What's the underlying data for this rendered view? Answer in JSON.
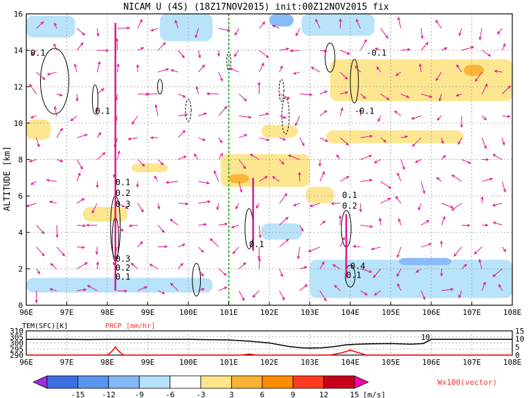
{
  "chart_data": [
    {
      "type": "heatmap",
      "title": "NICAM U (4S) (18Z17NOV2015) init:00Z12NOV2015 fix",
      "ylabel": "ALTITUDE [km]",
      "xlim": [
        96,
        108
      ],
      "ylim": [
        0,
        16
      ],
      "x_ticks": [
        "96E",
        "97E",
        "98E",
        "99E",
        "100E",
        "101E",
        "102E",
        "103E",
        "104E",
        "105E",
        "106E",
        "107E",
        "108E"
      ],
      "y_ticks": [
        "0",
        "2",
        "4",
        "6",
        "8",
        "10",
        "12",
        "14",
        "16"
      ],
      "grid": true,
      "marker_line_x": 101,
      "contour_labels": [
        {
          "text": "0.1",
          "x": 96.1,
          "y": 13.7
        },
        {
          "text": "0.1",
          "x": 97.7,
          "y": 10.5
        },
        {
          "text": "0.1",
          "x": 98.2,
          "y": 6.6
        },
        {
          "text": "0.2",
          "x": 98.2,
          "y": 6.0
        },
        {
          "text": "0.3",
          "x": 98.2,
          "y": 5.4
        },
        {
          "text": "0.3",
          "x": 98.2,
          "y": 2.4
        },
        {
          "text": "0.2",
          "x": 98.2,
          "y": 1.9
        },
        {
          "text": "0.1",
          "x": 98.2,
          "y": 1.4
        },
        {
          "text": "0.1",
          "x": 101.5,
          "y": 3.2
        },
        {
          "text": "0.1",
          "x": 103.8,
          "y": 5.9
        },
        {
          "text": "0.2",
          "x": 103.8,
          "y": 5.3
        },
        {
          "text": "0.4",
          "x": 104.0,
          "y": 2.0
        },
        {
          "text": "0.1",
          "x": 103.9,
          "y": 1.5
        },
        {
          "text": "-0.1",
          "x": 104.4,
          "y": 13.7
        },
        {
          "text": "-0.1",
          "x": 104.1,
          "y": 10.5
        }
      ],
      "shaded_regions": [
        {
          "level": "-3",
          "x": [
            96.0,
            97.2
          ],
          "y": [
            14.7,
            15.9
          ]
        },
        {
          "level": "-3",
          "x": [
            99.3,
            100.6
          ],
          "y": [
            14.5,
            16.0
          ]
        },
        {
          "level": "-3",
          "x": [
            102.8,
            104.6
          ],
          "y": [
            14.8,
            16.0
          ]
        },
        {
          "level": "-6",
          "x": [
            102.0,
            102.6
          ],
          "y": [
            15.3,
            16.0
          ]
        },
        {
          "level": "3",
          "x": [
            103.5,
            108.0
          ],
          "y": [
            11.2,
            13.5
          ]
        },
        {
          "level": "6",
          "x": [
            106.8,
            107.3
          ],
          "y": [
            12.6,
            13.2
          ]
        },
        {
          "level": "3",
          "x": [
            100.8,
            103.0
          ],
          "y": [
            6.5,
            8.3
          ]
        },
        {
          "level": "6",
          "x": [
            101.0,
            101.5
          ],
          "y": [
            6.7,
            7.2
          ]
        },
        {
          "level": "3",
          "x": [
            98.6,
            99.5
          ],
          "y": [
            7.3,
            7.8
          ]
        },
        {
          "level": "3",
          "x": [
            101.8,
            102.7
          ],
          "y": [
            9.2,
            9.9
          ]
        },
        {
          "level": "3",
          "x": [
            103.4,
            106.8
          ],
          "y": [
            8.9,
            9.6
          ]
        },
        {
          "level": "3",
          "x": [
            96.0,
            96.6
          ],
          "y": [
            9.1,
            10.2
          ]
        },
        {
          "level": "3",
          "x": [
            97.4,
            98.5
          ],
          "y": [
            4.6,
            5.4
          ]
        },
        {
          "level": "3",
          "x": [
            102.9,
            103.6
          ],
          "y": [
            5.6,
            6.5
          ]
        },
        {
          "level": "-3",
          "x": [
            103.0,
            108.0
          ],
          "y": [
            0.4,
            2.5
          ]
        },
        {
          "level": "-6",
          "x": [
            105.2,
            106.5
          ],
          "y": [
            2.2,
            2.6
          ]
        },
        {
          "level": "-3",
          "x": [
            96.0,
            100.6
          ],
          "y": [
            0.7,
            1.5
          ]
        },
        {
          "level": "-3",
          "x": [
            101.8,
            102.8
          ],
          "y": [
            3.6,
            4.5
          ]
        }
      ]
    },
    {
      "type": "line",
      "title": "",
      "xlim": [
        96,
        108
      ],
      "legend": [
        "TEM(SFC)[K]",
        "PRCP [mm/hr]"
      ],
      "left_ticks": [
        "310",
        "305",
        "300",
        "295",
        "290"
      ],
      "right_ticks": [
        "15",
        "10",
        "5",
        "0"
      ],
      "annotation": "10",
      "series": [
        {
          "name": "TEM(SFC)[K]",
          "color": "#000000",
          "x": [
            96.0,
            97.0,
            97.5,
            98.0,
            99.0,
            100.0,
            101.0,
            101.5,
            102.0,
            102.5,
            102.8,
            103.0,
            103.3,
            103.6,
            103.9,
            104.2,
            104.5,
            105.0,
            105.5,
            105.8,
            106.0,
            106.5,
            107.0,
            108.0
          ],
          "y": [
            303,
            303,
            302.8,
            303,
            303,
            303,
            302.5,
            301.5,
            300,
            297,
            296,
            295.8,
            296,
            297,
            298.5,
            299,
            299.3,
            299.5,
            299,
            299.5,
            303,
            303,
            303,
            303
          ]
        },
        {
          "name": "PRCP [mm/hr]",
          "color": "#ff0000",
          "x": [
            96.0,
            98.0,
            98.1,
            98.2,
            98.3,
            98.4,
            98.5,
            101.0,
            101.3,
            101.5,
            101.7,
            103.5,
            103.8,
            104.0,
            104.2,
            104.4,
            108.0
          ],
          "y": [
            0,
            0,
            2,
            5,
            2,
            0,
            0,
            0,
            0,
            0.6,
            0,
            0,
            1.5,
            3,
            1.5,
            0,
            0
          ]
        }
      ]
    }
  ],
  "colorbar": {
    "ticks": [
      "-15",
      "-12",
      "-9",
      "-6",
      "-3",
      "3",
      "6",
      "9",
      "12",
      "15"
    ],
    "unit": "[m/s]",
    "colors": [
      "#9b30e0",
      "#3c6fe0",
      "#5b95ef",
      "#85b8f7",
      "#b4e1f9",
      "#ffffff",
      "#fde58a",
      "#fbb235",
      "#ff8c00",
      "#ff3b1f",
      "#c8001c",
      "#ff00a8"
    ]
  },
  "vector_label": "Wx100(vector)"
}
